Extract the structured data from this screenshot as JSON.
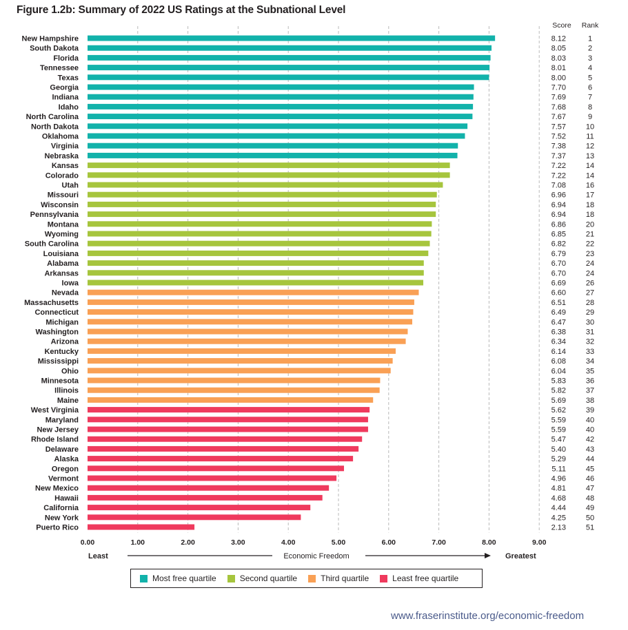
{
  "title": "Figure 1.2b: Summary of 2022 US Ratings at the Subnational Level",
  "source_url": "www.fraserinstitute.org/economic-freedom",
  "columns": {
    "score": "Score",
    "rank": "Rank"
  },
  "axis": {
    "least": "Least",
    "greatest": "Greatest",
    "label": "Economic Freedom"
  },
  "colors": {
    "q1": "#12b2aa",
    "q2": "#a6c53d",
    "q3": "#f9a055",
    "q4": "#ef3a5d"
  },
  "legend": [
    {
      "label": "Most free quartile",
      "color": "#12b2aa"
    },
    {
      "label": "Second quartile",
      "color": "#a6c53d"
    },
    {
      "label": "Third quartile",
      "color": "#f9a055"
    },
    {
      "label": "Least free quartile",
      "color": "#ef3a5d"
    }
  ],
  "chart_data": {
    "type": "bar",
    "orientation": "horizontal",
    "title": "Figure 1.2b: Summary of 2022 US Ratings at the Subnational Level",
    "xlabel": "Economic Freedom",
    "xlim": [
      0,
      9
    ],
    "xticks": [
      "0.00",
      "1.00",
      "2.00",
      "3.00",
      "4.00",
      "5.00",
      "6.00",
      "7.00",
      "8.00",
      "9.00"
    ],
    "grid": "vertical dashed",
    "legend_position": "bottom",
    "categories": [
      "New Hampshire",
      "South Dakota",
      "Florida",
      "Tennessee",
      "Texas",
      "Georgia",
      "Indiana",
      "Idaho",
      "North Carolina",
      "North Dakota",
      "Oklahoma",
      "Virginia",
      "Nebraska",
      "Kansas",
      "Colorado",
      "Utah",
      "Missouri",
      "Wisconsin",
      "Pennsylvania",
      "Montana",
      "Wyoming",
      "South Carolina",
      "Louisiana",
      "Alabama",
      "Arkansas",
      "Iowa",
      "Nevada",
      "Massachusetts",
      "Connecticut",
      "Michigan",
      "Washington",
      "Arizona",
      "Kentucky",
      "Mississippi",
      "Ohio",
      "Minnesota",
      "Illinois",
      "Maine",
      "West Virginia",
      "Maryland",
      "New Jersey",
      "Rhode Island",
      "Delaware",
      "Alaska",
      "Oregon",
      "Vermont",
      "New Mexico",
      "Hawaii",
      "California",
      "New York",
      "Puerto Rico"
    ],
    "values": [
      8.12,
      8.05,
      8.03,
      8.01,
      8.0,
      7.7,
      7.69,
      7.68,
      7.67,
      7.57,
      7.52,
      7.38,
      7.37,
      7.22,
      7.22,
      7.08,
      6.96,
      6.94,
      6.94,
      6.86,
      6.85,
      6.82,
      6.79,
      6.7,
      6.7,
      6.69,
      6.6,
      6.51,
      6.49,
      6.47,
      6.38,
      6.34,
      6.14,
      6.08,
      6.04,
      5.83,
      5.82,
      5.69,
      5.62,
      5.59,
      5.59,
      5.47,
      5.4,
      5.29,
      5.11,
      4.96,
      4.81,
      4.68,
      4.44,
      4.25,
      2.13
    ],
    "scores": [
      "8.12",
      "8.05",
      "8.03",
      "8.01",
      "8.00",
      "7.70",
      "7.69",
      "7.68",
      "7.67",
      "7.57",
      "7.52",
      "7.38",
      "7.37",
      "7.22",
      "7.22",
      "7.08",
      "6.96",
      "6.94",
      "6.94",
      "6.86",
      "6.85",
      "6.82",
      "6.79",
      "6.70",
      "6.70",
      "6.69",
      "6.60",
      "6.51",
      "6.49",
      "6.47",
      "6.38",
      "6.34",
      "6.14",
      "6.08",
      "6.04",
      "5.83",
      "5.82",
      "5.69",
      "5.62",
      "5.59",
      "5.59",
      "5.47",
      "5.40",
      "5.29",
      "5.11",
      "4.96",
      "4.81",
      "4.68",
      "4.44",
      "4.25",
      "2.13"
    ],
    "ranks": [
      1,
      2,
      3,
      4,
      5,
      6,
      7,
      8,
      9,
      10,
      11,
      12,
      13,
      14,
      14,
      16,
      17,
      18,
      18,
      20,
      21,
      22,
      23,
      24,
      24,
      26,
      27,
      28,
      29,
      30,
      31,
      32,
      33,
      34,
      35,
      36,
      37,
      38,
      39,
      40,
      40,
      42,
      43,
      44,
      45,
      46,
      47,
      48,
      49,
      50,
      51
    ],
    "quartile": [
      1,
      1,
      1,
      1,
      1,
      1,
      1,
      1,
      1,
      1,
      1,
      1,
      1,
      2,
      2,
      2,
      2,
      2,
      2,
      2,
      2,
      2,
      2,
      2,
      2,
      2,
      3,
      3,
      3,
      3,
      3,
      3,
      3,
      3,
      3,
      3,
      3,
      3,
      4,
      4,
      4,
      4,
      4,
      4,
      4,
      4,
      4,
      4,
      4,
      4,
      4
    ]
  }
}
